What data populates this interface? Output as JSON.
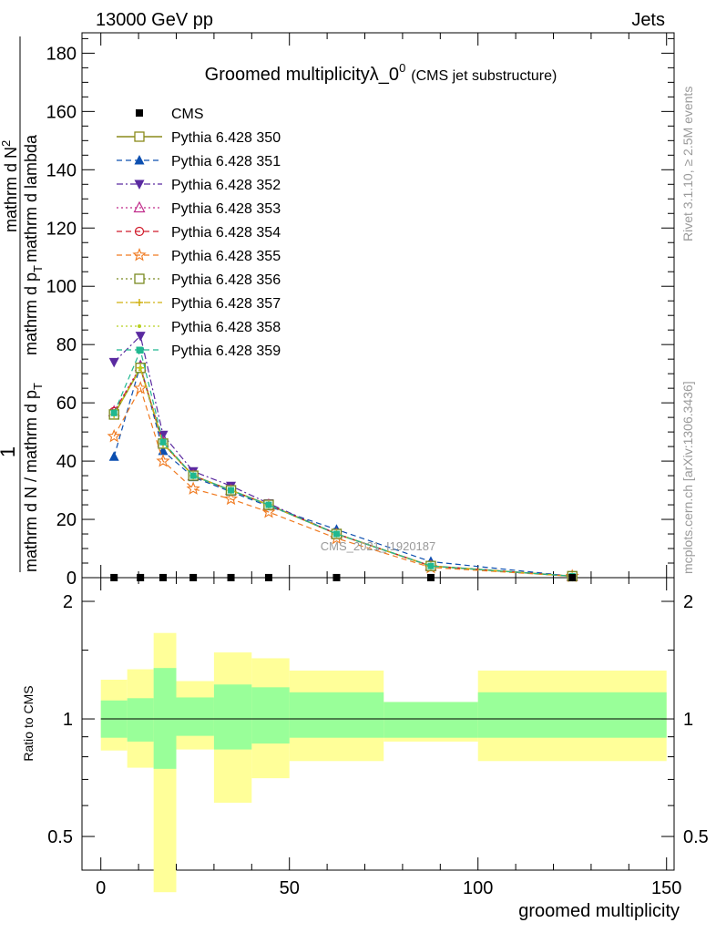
{
  "header": {
    "left": "13000 GeV pp",
    "right": "Jets"
  },
  "side_labels": {
    "rivet": "Rivet 3.1.10, ≥ 2.5M events",
    "mcplots": "mcplots.cern.ch [arXiv:1306.3436]"
  },
  "watermark": "CMS_2021_I1920187",
  "chart_data": [
    {
      "type": "line",
      "title": "Groomed multiplicityλ_0",
      "title_superscript": "0",
      "subtitle": "(CMS jet substructure)",
      "xlabel": "groomed multiplicity",
      "ylabel_parts": {
        "prefix": "1",
        "left": "mathrm d N / mathrm d p",
        "left_sub": "T",
        "middle": "mathrm d N",
        "middle_sup": "2",
        "right": "mathrm d p",
        "right_sub": "T",
        "right_tail": "mathrm d lambda"
      },
      "xlim": [
        -5,
        152
      ],
      "ylim": [
        0,
        187
      ],
      "x_ticks": [
        0,
        50,
        100,
        150
      ],
      "y_ticks": [
        0,
        20,
        40,
        60,
        80,
        100,
        120,
        140,
        160,
        180
      ],
      "legend_position": "top-left",
      "data": {
        "name": "CMS",
        "x": [
          3.5,
          10.5,
          16.5,
          24.5,
          34.5,
          44.5,
          62.5,
          87.5,
          125
        ],
        "y": [
          0.02,
          0.02,
          0.02,
          0.02,
          0.02,
          0.02,
          0.02,
          0.02,
          0.02
        ]
      },
      "x": [
        3.5,
        10.5,
        16.5,
        24.5,
        34.5,
        44.5,
        62.5,
        87.5,
        125
      ],
      "series": [
        {
          "name": "Pythia 6.428 350",
          "color": "#8a8a1a",
          "marker": "square-open",
          "dash": "solid",
          "values": [
            56,
            72,
            46,
            35,
            30,
            25,
            15,
            4,
            0.5
          ]
        },
        {
          "name": "Pythia 6.428 351",
          "color": "#0c4fb0",
          "marker": "triangle-up",
          "dash": "dashed",
          "values": [
            41.5,
            73,
            43.5,
            34.5,
            29.5,
            24.5,
            16.5,
            5.5,
            0.5
          ]
        },
        {
          "name": "Pythia 6.428 352",
          "color": "#5a2aa0",
          "marker": "triangle-down",
          "dash": "dashdot",
          "values": [
            74,
            83,
            49,
            36.5,
            31.5,
            25.5,
            15,
            4,
            0.5
          ]
        },
        {
          "name": "Pythia 6.428 353",
          "color": "#c02a8a",
          "marker": "triangle-up-open",
          "dash": "dotted",
          "values": [
            57,
            72.5,
            46.5,
            35,
            30,
            25,
            15,
            4,
            0.5
          ]
        },
        {
          "name": "Pythia 6.428 354",
          "color": "#d01a2a",
          "marker": "circle-open",
          "dash": "dashed",
          "values": [
            57,
            72,
            46,
            35,
            30,
            25,
            15,
            4,
            0.5
          ]
        },
        {
          "name": "Pythia 6.428 355",
          "color": "#f07a20",
          "marker": "star-open",
          "dash": "dashed",
          "values": [
            48.5,
            65,
            40,
            30.5,
            27,
            22.5,
            13.5,
            3.5,
            0.5
          ]
        },
        {
          "name": "Pythia 6.428 356",
          "color": "#7a8a20",
          "marker": "square-open",
          "dash": "dotted",
          "values": [
            56,
            72,
            46,
            35,
            30,
            25,
            15,
            4,
            0.5
          ]
        },
        {
          "name": "Pythia 6.428 357",
          "color": "#d0b010",
          "marker": "plus",
          "dash": "dashdot",
          "values": [
            56,
            72,
            46,
            35,
            30,
            25,
            15,
            4,
            0.5
          ]
        },
        {
          "name": "Pythia 6.428 358",
          "color": "#b8d020",
          "marker": "dot",
          "dash": "dotted",
          "values": [
            56,
            72,
            46,
            35,
            30,
            25,
            15,
            4,
            0.5
          ]
        },
        {
          "name": "Pythia 6.428 359",
          "color": "#20b890",
          "marker": "square-filled",
          "dash": "dashed",
          "values": [
            56.5,
            78,
            46.5,
            35,
            30,
            25,
            15,
            4,
            0.5
          ]
        }
      ]
    },
    {
      "type": "area",
      "ylabel": "Ratio to CMS",
      "xlabel": "groomed multiplicity",
      "xlim": [
        -5,
        152
      ],
      "ylim": [
        0.41,
        2.3
      ],
      "scale": "log",
      "y_ticks": [
        0.5,
        1,
        2
      ],
      "x_ticks": [
        0,
        50,
        100,
        150
      ],
      "reference_line": 1,
      "bands": {
        "bin_edges": [
          0,
          7,
          14,
          20,
          30,
          40,
          50,
          75,
          100,
          150
        ],
        "stat_low": [
          0.895,
          0.875,
          0.745,
          0.905,
          0.835,
          0.865,
          0.895,
          0.895,
          0.895
        ],
        "stat_high": [
          1.115,
          1.13,
          1.35,
          1.135,
          1.225,
          1.205,
          1.17,
          1.105,
          1.17
        ],
        "total_low": [
          0.83,
          0.75,
          0.36,
          0.835,
          0.61,
          0.705,
          0.78,
          0.875,
          0.78
        ],
        "total_high": [
          1.26,
          1.34,
          1.66,
          1.25,
          1.48,
          1.43,
          1.33,
          1.105,
          1.33
        ],
        "stat_color": "#99ff99",
        "total_color": "#ffff99"
      }
    }
  ]
}
